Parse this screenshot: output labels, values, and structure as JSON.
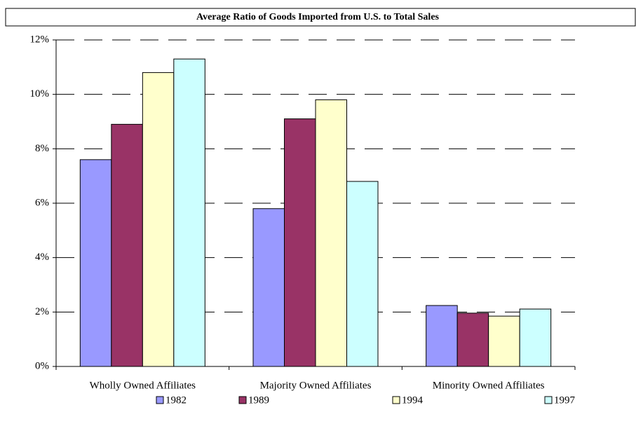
{
  "chart_data": {
    "type": "bar",
    "title": "Average Ratio of Goods Imported from U.S. to Total Sales",
    "categories": [
      "Wholly Owned Affiliates",
      "Majority Owned Affiliates",
      "Minority Owned Affiliates"
    ],
    "series": [
      {
        "name": "1982",
        "color": "#9999ff",
        "values": [
          7.6,
          5.8,
          2.24
        ]
      },
      {
        "name": "1989",
        "color": "#993366",
        "values": [
          8.9,
          9.1,
          1.96
        ]
      },
      {
        "name": "1994",
        "color": "#ffffcc",
        "values": [
          10.8,
          9.8,
          1.85
        ]
      },
      {
        "name": "1997",
        "color": "#ccffff",
        "values": [
          11.3,
          6.8,
          2.11
        ]
      }
    ],
    "ylim": [
      0,
      12
    ],
    "yticks": [
      {
        "value": 0,
        "label": "0%"
      },
      {
        "value": 2,
        "label": "2%"
      },
      {
        "value": 4,
        "label": "4%"
      },
      {
        "value": 6,
        "label": "6%"
      },
      {
        "value": 8,
        "label": "8%"
      },
      {
        "value": 10,
        "label": "10%"
      },
      {
        "value": 12,
        "label": "12%"
      }
    ],
    "grid": true,
    "legend": "bottom"
  }
}
